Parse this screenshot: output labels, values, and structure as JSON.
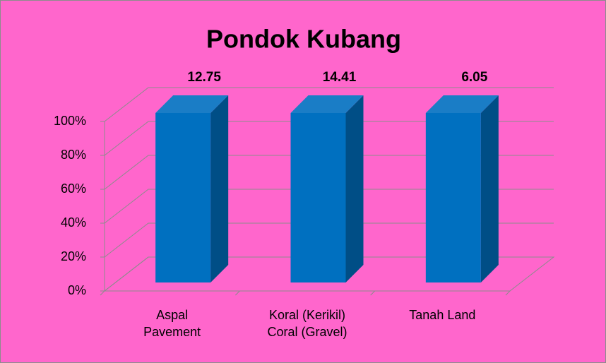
{
  "chart_data": {
    "type": "bar3d",
    "title": "Pondok Kubang",
    "categories": [
      "Aspal\nPavement",
      "Koral (Kerikil)\nCoral (Gravel)",
      "Tanah Land"
    ],
    "values": [
      12.75,
      14.41,
      6.05
    ],
    "percent_stacked": true,
    "color": "#0070c0",
    "ylim": [
      0,
      100
    ],
    "yticks": [
      {
        "value": 0,
        "label": "0%"
      },
      {
        "value": 20,
        "label": "20%"
      },
      {
        "value": 40,
        "label": "40%"
      },
      {
        "value": 60,
        "label": "60%"
      },
      {
        "value": 80,
        "label": "80%"
      },
      {
        "value": 100,
        "label": "100%"
      }
    ],
    "grid": true
  }
}
